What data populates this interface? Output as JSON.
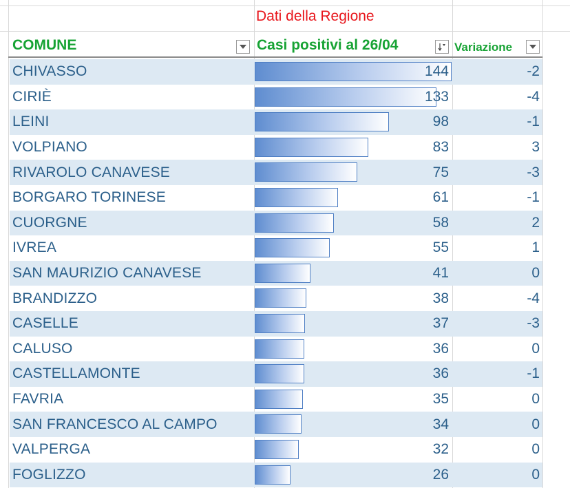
{
  "title": "Dati della Regione",
  "columns": {
    "comune": "COMUNE",
    "casi": "Casi positivi al 26/04",
    "variazione": "Variazione"
  },
  "icons": {
    "filter_comune": "dropdown-arrow-icon",
    "filter_casi": "sort-descending-filter-icon",
    "filter_variazione": "dropdown-arrow-icon"
  },
  "colors": {
    "title": "#e8151b",
    "header": "#17a334",
    "text": "#2b5f8a",
    "band": "#dde9f3",
    "bar": "#5f8dd0"
  },
  "data_bar_max": 144,
  "rows": [
    {
      "comune": "CHIVASSO",
      "casi": "144",
      "variazione": "-2"
    },
    {
      "comune": "CIRIÈ",
      "casi": "133",
      "variazione": "-4"
    },
    {
      "comune": "LEINI",
      "casi": "98",
      "variazione": "-1"
    },
    {
      "comune": "VOLPIANO",
      "casi": "83",
      "variazione": "3"
    },
    {
      "comune": "RIVAROLO CANAVESE",
      "casi": "75",
      "variazione": "-3"
    },
    {
      "comune": "BORGARO TORINESE",
      "casi": "61",
      "variazione": "-1"
    },
    {
      "comune": "CUORGNE",
      "casi": "58",
      "variazione": "2"
    },
    {
      "comune": "IVREA",
      "casi": "55",
      "variazione": "1"
    },
    {
      "comune": "SAN MAURIZIO CANAVESE",
      "casi": "41",
      "variazione": "0"
    },
    {
      "comune": "BRANDIZZO",
      "casi": "38",
      "variazione": "-4"
    },
    {
      "comune": "CASELLE",
      "casi": "37",
      "variazione": "-3"
    },
    {
      "comune": "CALUSO",
      "casi": "36",
      "variazione": "0"
    },
    {
      "comune": "CASTELLAMONTE",
      "casi": "36",
      "variazione": "-1"
    },
    {
      "comune": "FAVRIA",
      "casi": "35",
      "variazione": "0"
    },
    {
      "comune": "SAN FRANCESCO AL CAMPO",
      "casi": "34",
      "variazione": "0"
    },
    {
      "comune": "VALPERGA",
      "casi": "32",
      "variazione": "0"
    },
    {
      "comune": "FOGLIZZO",
      "casi": "26",
      "variazione": "0"
    }
  ]
}
